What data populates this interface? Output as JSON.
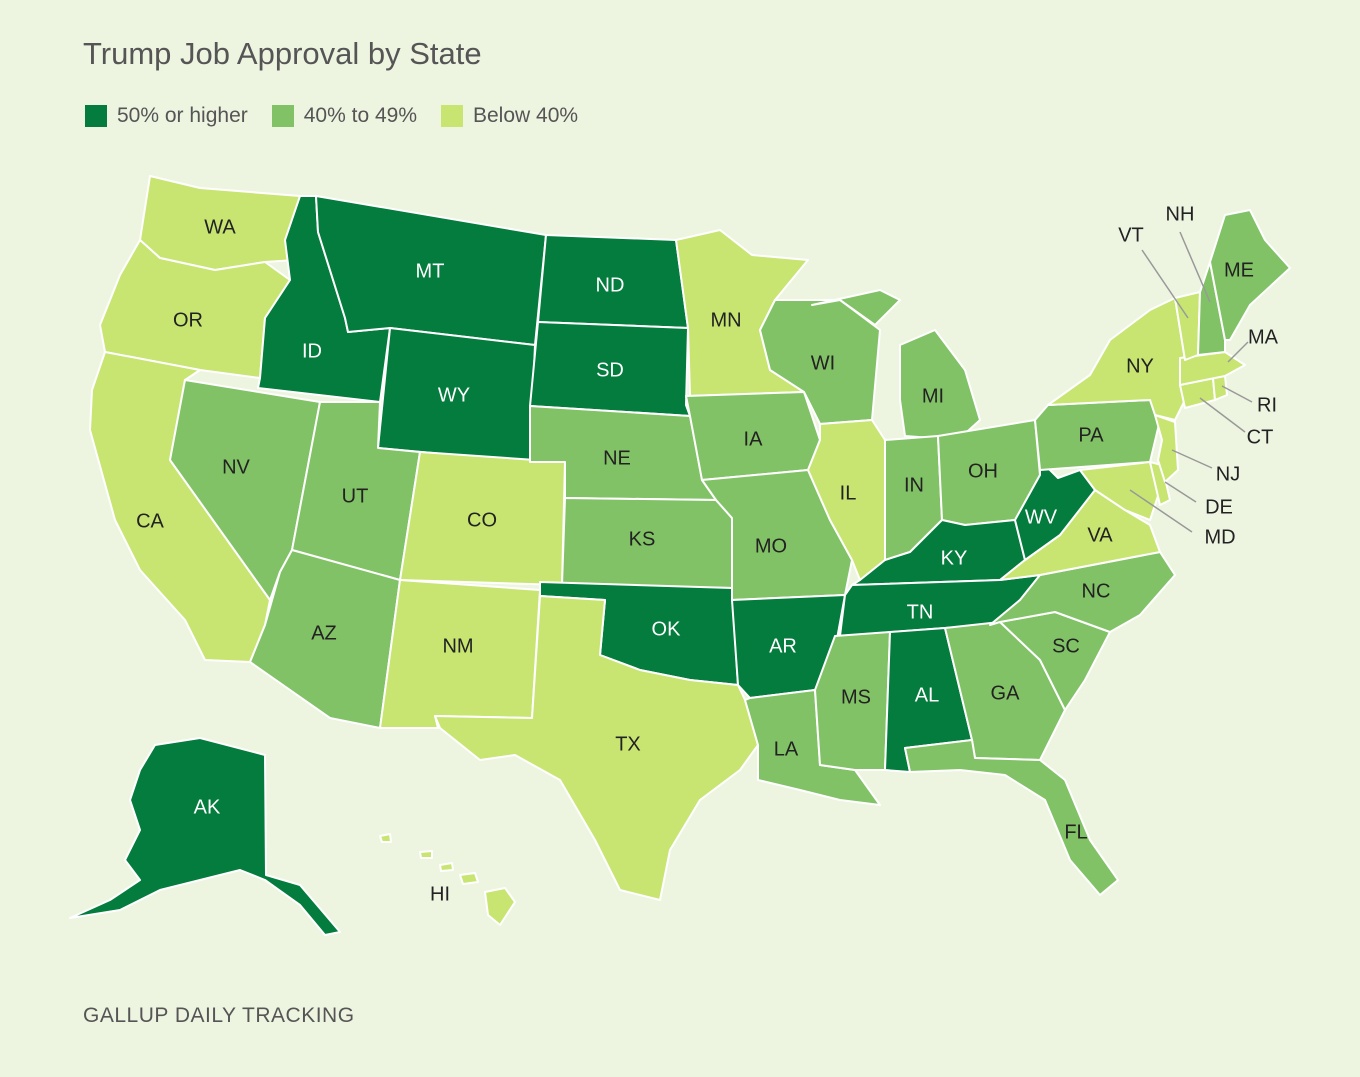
{
  "title": "Trump Job Approval by State",
  "source": "GALLUP DAILY TRACKING",
  "colors": {
    "high": "#037c3d",
    "mid": "#82c266",
    "low": "#c8e572"
  },
  "legend": [
    {
      "key": "high",
      "label": "50% or higher"
    },
    {
      "key": "mid",
      "label": "40% to 49%"
    },
    {
      "key": "low",
      "label": "Below 40%"
    }
  ],
  "chart_data": {
    "type": "choropleth",
    "categories": [
      "50% or higher",
      "40% to 49%",
      "Below 40%"
    ],
    "states": {
      "WA": "low",
      "OR": "low",
      "CA": "low",
      "ID": "high",
      "NV": "mid",
      "MT": "high",
      "WY": "high",
      "UT": "mid",
      "AZ": "mid",
      "CO": "low",
      "NM": "low",
      "ND": "high",
      "SD": "high",
      "NE": "mid",
      "KS": "mid",
      "OK": "high",
      "TX": "low",
      "MN": "low",
      "IA": "mid",
      "MO": "mid",
      "AR": "high",
      "LA": "mid",
      "WI": "mid",
      "IL": "low",
      "MI": "mid",
      "IN": "mid",
      "OH": "mid",
      "KY": "high",
      "TN": "high",
      "MS": "mid",
      "AL": "high",
      "GA": "mid",
      "FL": "mid",
      "SC": "mid",
      "NC": "mid",
      "VA": "low",
      "WV": "high",
      "PA": "mid",
      "NY": "low",
      "VT": "low",
      "NH": "mid",
      "ME": "mid",
      "MA": "low",
      "RI": "low",
      "CT": "low",
      "NJ": "low",
      "DE": "low",
      "MD": "low",
      "AK": "high",
      "HI": "low"
    }
  }
}
